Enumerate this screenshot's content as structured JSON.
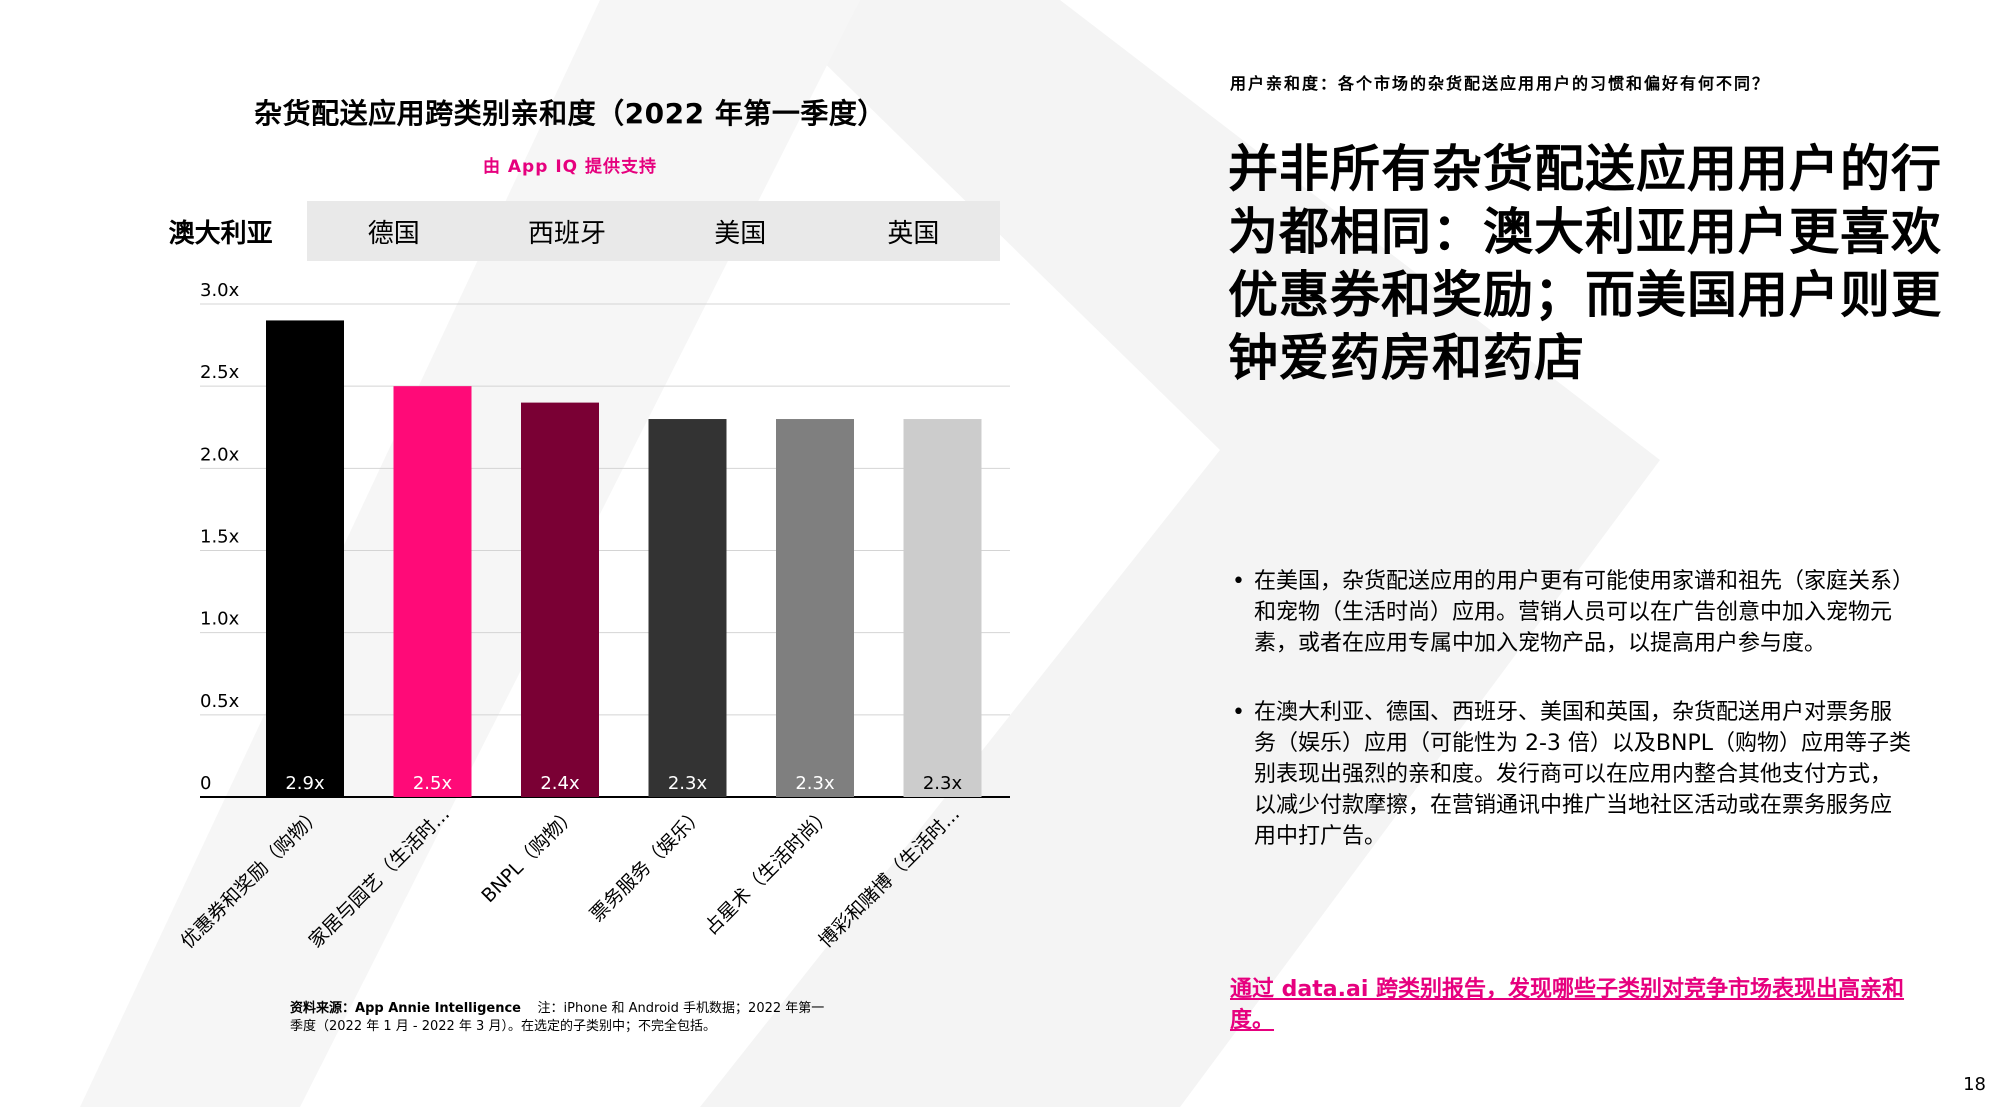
{
  "chart_title": "杂货配送应用跨类别亲和度（2022 年第一季度）",
  "chart_subtitle": "由 App IQ 提供支持",
  "tabs": [
    {
      "label": "澳大利亚",
      "active": true
    },
    {
      "label": "德国",
      "active": false
    },
    {
      "label": "西班牙",
      "active": false
    },
    {
      "label": "美国",
      "active": false
    },
    {
      "label": "英国",
      "active": false
    }
  ],
  "chart_data": {
    "type": "bar",
    "categories": [
      "优惠券和奖励（购物）",
      "家居与园艺（生活时...",
      "BNPL（购物）",
      "票务服务（娱乐）",
      "占星术（生活时尚）",
      "博彩和赌博（生活时..."
    ],
    "values": [
      2.9,
      2.5,
      2.4,
      2.3,
      2.3,
      2.3
    ],
    "data_labels": [
      "2.9x",
      "2.5x",
      "2.4x",
      "2.3x",
      "2.3x",
      "2.3x"
    ],
    "colors": [
      "#000000",
      "#ff0a78",
      "#7a0034",
      "#333333",
      "#7f7f7f",
      "#cccccc"
    ],
    "yticks": [
      0,
      0.5,
      1.0,
      1.5,
      2.0,
      2.5,
      3.0
    ],
    "ytick_labels": [
      "0",
      "0.5x",
      "1.0x",
      "1.5x",
      "2.0x",
      "2.5x",
      "3.0x"
    ],
    "ylim": [
      0,
      3.0
    ],
    "grid": true
  },
  "source_note": {
    "label": "资料来源：",
    "source": "App Annie Intelligence",
    "note": "注：iPhone 和 Android 手机数据；2022 年第一季度（2022 年 1 月 - 2022 年 3 月）。在选定的子类别中；不完全包括。"
  },
  "section_label": "用户亲和度：各个市场的杂货配送应用用户的习惯和偏好有何不同？",
  "headline": "并非所有杂货配送应用用户的行为都相同：澳大利亚用户更喜欢优惠券和奖励；而美国用户则更钟爱药房和药店",
  "bullets": [
    "在美国，杂货配送应用的用户更有可能使用家谱和祖先（家庭关系）和宠物（生活时尚）应用。营销人员可以在广告创意中加入宠物元素，或者在应用专属中加入宠物产品，以提高用户参与度。",
    "在澳大利亚、德国、西班牙、美国和英国，杂货配送用户对票务服务（娱乐）应用（可能性为 2-3 倍）以及BNPL（购物）应用等子类别表现出强烈的亲和度。发行商可以在应用内整合其他支付方式，以减少付款摩擦，在营销通讯中推广当地社区活动或在票务服务应用中打广告。"
  ],
  "cta_link": "通过 data.ai 跨类别报告，发现哪些子类别对竞争市场表现出高亲和度。",
  "page_number": "18"
}
